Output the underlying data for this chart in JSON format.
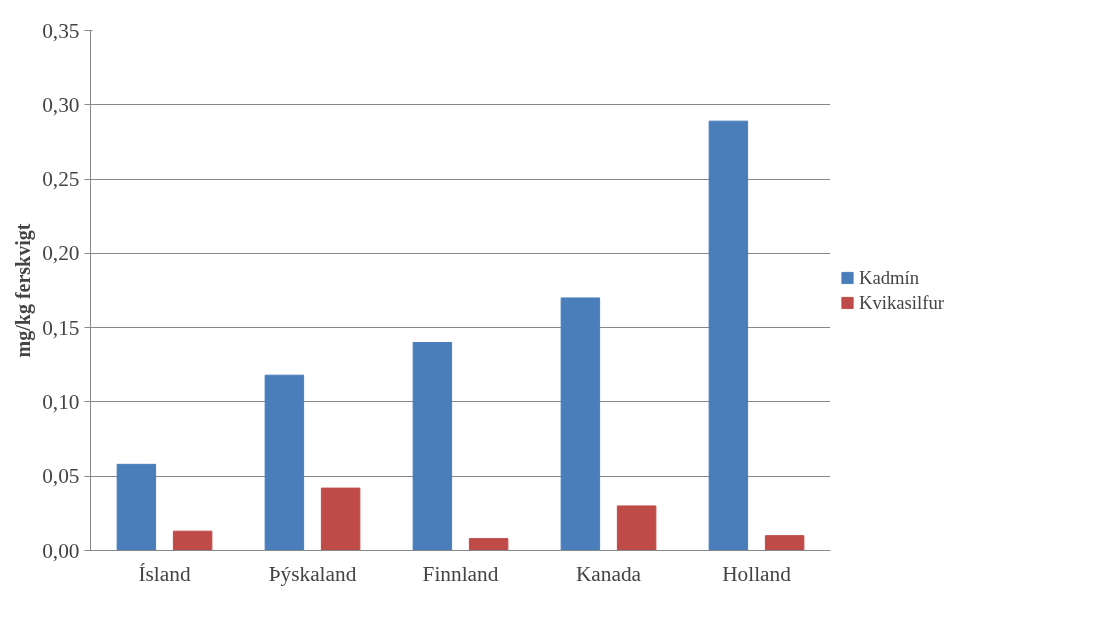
{
  "chart_data": {
    "type": "bar",
    "ylabel": "mg/kg ferskvigt",
    "categories": [
      "Ísland",
      "Þýskaland",
      "Finnland",
      "Kanada",
      "Holland"
    ],
    "series": [
      {
        "name": "Kadmín",
        "color": "#4a7ebb",
        "values": [
          0.058,
          0.118,
          0.14,
          0.17,
          0.289
        ]
      },
      {
        "name": "Kvikasilfur",
        "color": "#be4b48",
        "values": [
          0.013,
          0.042,
          0.008,
          0.03,
          0.01
        ]
      }
    ],
    "ylim": [
      0,
      0.35
    ],
    "yticks": [
      {
        "value": 0,
        "label": "0,00"
      },
      {
        "value": 0.05,
        "label": "0,05"
      },
      {
        "value": 0.1,
        "label": "0,10"
      },
      {
        "value": 0.15,
        "label": "0,15"
      },
      {
        "value": 0.2,
        "label": "0,20"
      },
      {
        "value": 0.25,
        "label": "0,25"
      },
      {
        "value": 0.3,
        "label": "0,30"
      },
      {
        "value": 0.35,
        "label": "0,35"
      }
    ],
    "grid": "y",
    "legend": "right"
  }
}
